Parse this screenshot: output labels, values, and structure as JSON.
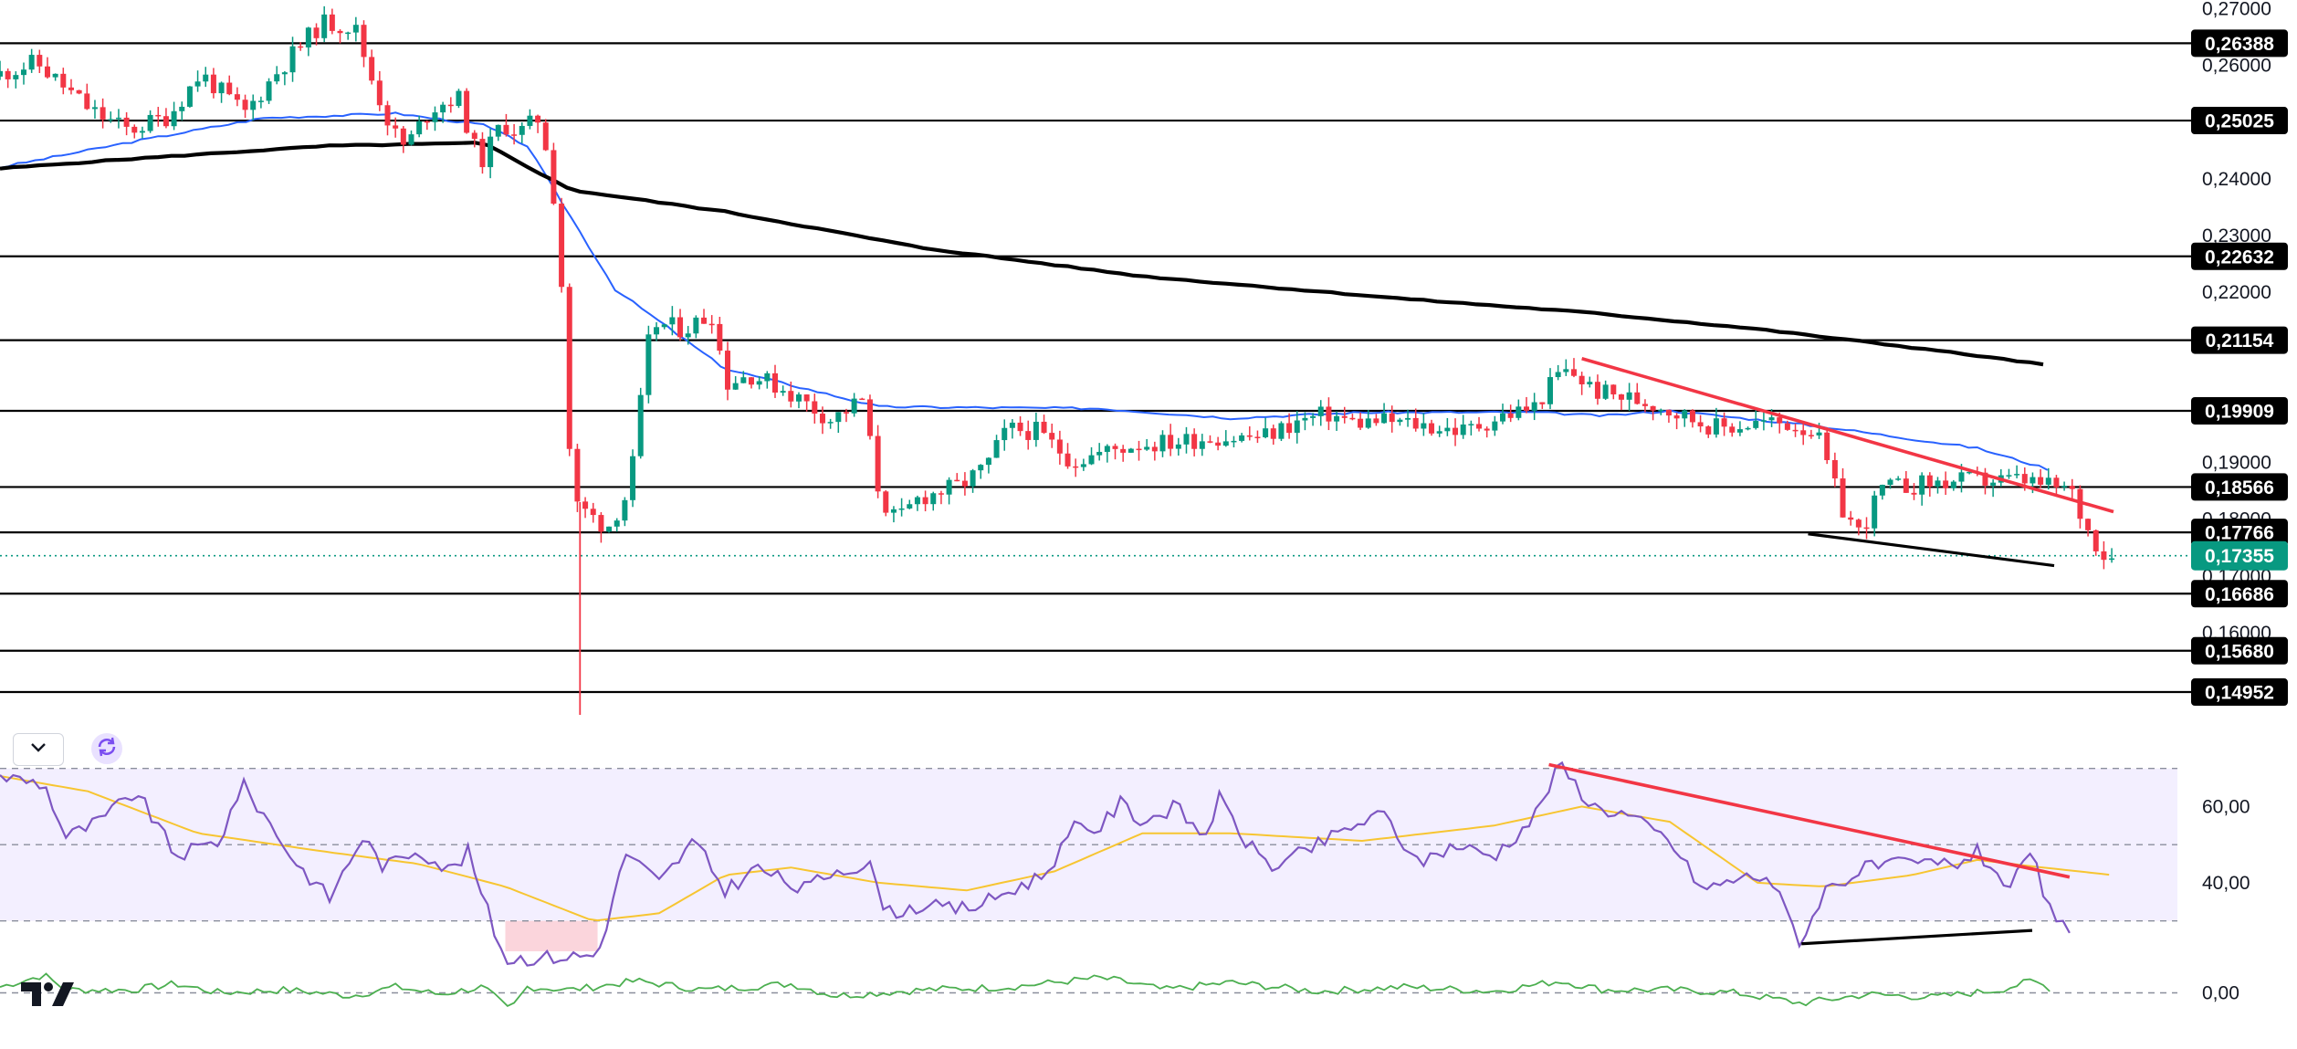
{
  "chart_data": [
    {
      "type": "candlestick",
      "pane": "price",
      "price_axis_ticks": [
        "0,27000",
        "0,26000",
        "0,24000",
        "0,23000",
        "0,22000",
        "0,19000",
        "0,18000",
        "0,17000",
        "0,16000"
      ],
      "ylim": [
        0.1455,
        0.2715
      ],
      "horizontal_levels": [
        {
          "value": 0.26388,
          "label": "0,26388"
        },
        {
          "value": 0.25025,
          "label": "0,25025"
        },
        {
          "value": 0.22632,
          "label": "0,22632"
        },
        {
          "value": 0.21154,
          "label": "0,21154"
        },
        {
          "value": 0.19909,
          "label": "0,19909"
        },
        {
          "value": 0.18566,
          "label": "0,18566"
        },
        {
          "value": 0.17766,
          "label": "0,17766"
        },
        {
          "value": 0.16686,
          "label": "0,16686"
        },
        {
          "value": 0.1568,
          "label": "0,15680"
        },
        {
          "value": 0.14952,
          "label": "0,14952"
        }
      ],
      "current_price": {
        "value": 0.17355,
        "label": "0,17355"
      },
      "series": [
        {
          "kind": "candles",
          "anchors": [
            [
              0,
              0.258
            ],
            [
              20,
              0.2605
            ],
            [
              45,
              0.252
            ],
            [
              62,
              0.2485
            ],
            [
              80,
              0.251
            ],
            [
              95,
              0.2585
            ],
            [
              115,
              0.2515
            ],
            [
              130,
              0.259
            ],
            [
              150,
              0.2675
            ],
            [
              165,
              0.2668
            ],
            [
              172,
              0.2585
            ],
            [
              182,
              0.2485
            ],
            [
              188,
              0.2455
            ],
            [
              200,
              0.2525
            ],
            [
              212,
              0.2545
            ],
            [
              222,
              0.2425
            ],
            [
              232,
              0.2498
            ],
            [
              240,
              0.2481
            ],
            [
              250,
              0.251
            ],
            [
              258,
              0.231
            ],
            [
              264,
              0.183
            ],
            [
              280,
              0.1785
            ],
            [
              290,
              0.185
            ],
            [
              300,
              0.2145
            ],
            [
              315,
              0.2135
            ],
            [
              328,
              0.2162
            ],
            [
              334,
              0.204
            ],
            [
              345,
              0.2055
            ],
            [
              360,
              0.203
            ],
            [
              382,
              0.1975
            ],
            [
              396,
              0.201
            ],
            [
              404,
              0.184
            ],
            [
              412,
              0.1795
            ],
            [
              422,
              0.1838
            ],
            [
              440,
              0.1858
            ],
            [
              452,
              0.189
            ],
            [
              462,
              0.1958
            ],
            [
              475,
              0.1955
            ],
            [
              492,
              0.1902
            ],
            [
              506,
              0.1918
            ],
            [
              520,
              0.1932
            ],
            [
              537,
              0.1935
            ],
            [
              555,
              0.1945
            ],
            [
              566,
              0.1943
            ],
            [
              580,
              0.1947
            ],
            [
              593,
              0.197
            ],
            [
              608,
              0.1985
            ],
            [
              620,
              0.197
            ],
            [
              634,
              0.1973
            ],
            [
              652,
              0.1965
            ],
            [
              670,
              0.1955
            ],
            [
              686,
              0.198
            ],
            [
              702,
              0.1998
            ],
            [
              714,
              0.206
            ],
            [
              720,
              0.2055
            ],
            [
              730,
              0.2025
            ],
            [
              746,
              0.2012
            ],
            [
              758,
              0.2002
            ],
            [
              770,
              0.1982
            ],
            [
              786,
              0.196
            ],
            [
              804,
              0.197
            ],
            [
              818,
              0.1968
            ],
            [
              830,
              0.1955
            ],
            [
              842,
              0.1818
            ],
            [
              850,
              0.1775
            ],
            [
              860,
              0.1853
            ],
            [
              880,
              0.1862
            ],
            [
              900,
              0.1868
            ],
            [
              925,
              0.1868
            ],
            [
              935,
              0.1858
            ],
            [
              946,
              0.1852
            ],
            [
              953,
              0.1785
            ],
            [
              962,
              0.1735
            ]
          ]
        },
        {
          "kind": "ma_blue",
          "anchors": [
            [
              0,
              0.242
            ],
            [
              60,
              0.2465
            ],
            [
              120,
              0.2507
            ],
            [
              180,
              0.2515
            ],
            [
              220,
              0.2495
            ],
            [
              240,
              0.2458
            ],
            [
              280,
              0.2205
            ],
            [
              330,
              0.2065
            ],
            [
              400,
              0.1998
            ],
            [
              500,
              0.1995
            ],
            [
              560,
              0.1978
            ],
            [
              620,
              0.1988
            ],
            [
              700,
              0.1988
            ],
            [
              730,
              0.1982
            ],
            [
              760,
              0.1991
            ],
            [
              830,
              0.1963
            ],
            [
              900,
              0.1925
            ],
            [
              935,
              0.1885
            ]
          ]
        },
        {
          "kind": "ma_black",
          "anchors": [
            [
              0,
              0.2418
            ],
            [
              60,
              0.2435
            ],
            [
              150,
              0.2458
            ],
            [
              220,
              0.2463
            ],
            [
              260,
              0.238
            ],
            [
              330,
              0.2342
            ],
            [
              420,
              0.2278
            ],
            [
              520,
              0.2228
            ],
            [
              640,
              0.2188
            ],
            [
              720,
              0.2165
            ],
            [
              800,
              0.2135
            ],
            [
              880,
              0.2098
            ],
            [
              935,
              0.207
            ]
          ]
        },
        {
          "kind": "trendline_resistance",
          "color": "#f23645",
          "points": [
            [
              720,
              0.2083
            ],
            [
              962,
              0.1813
            ]
          ]
        },
        {
          "kind": "trendline_support",
          "color": "#000000",
          "points": [
            [
              823,
              0.1774
            ],
            [
              935,
              0.1718
            ]
          ]
        }
      ]
    },
    {
      "type": "line",
      "pane": "rsi",
      "axis_ticks": [
        "60,00",
        "40,00"
      ],
      "ylim": [
        22.5,
        74
      ],
      "reference_lines": [
        70,
        50,
        30
      ],
      "oversold_highlight": [
        [
          230,
          272
        ]
      ],
      "series": [
        {
          "kind": "rsi",
          "color": "#7e57c2",
          "anchors": [
            [
              0,
              68
            ],
            [
              20,
              66
            ],
            [
              30,
              52
            ],
            [
              45,
              56
            ],
            [
              62,
              64
            ],
            [
              80,
              47
            ],
            [
              100,
              51
            ],
            [
              110,
              66
            ],
            [
              120,
              58
            ],
            [
              135,
              45
            ],
            [
              150,
              36
            ],
            [
              165,
              52
            ],
            [
              175,
              44
            ],
            [
              190,
              49
            ],
            [
              205,
              43
            ],
            [
              213,
              48
            ],
            [
              224,
              29
            ],
            [
              230,
              20
            ],
            [
              272,
              21
            ],
            [
              285,
              48
            ],
            [
              300,
              40
            ],
            [
              316,
              51
            ],
            [
              330,
              38
            ],
            [
              345,
              44
            ],
            [
              365,
              38
            ],
            [
              382,
              44
            ],
            [
              396,
              44
            ],
            [
              404,
              32
            ],
            [
              420,
              34
            ],
            [
              434,
              33
            ],
            [
              445,
              34
            ],
            [
              460,
              38
            ],
            [
              475,
              42
            ],
            [
              490,
              55
            ],
            [
              500,
              54
            ],
            [
              510,
              61
            ],
            [
              520,
              56
            ],
            [
              535,
              60
            ],
            [
              548,
              52
            ],
            [
              555,
              62
            ],
            [
              568,
              50
            ],
            [
              580,
              44
            ],
            [
              600,
              50
            ],
            [
              616,
              55
            ],
            [
              630,
              58
            ],
            [
              645,
              45
            ],
            [
              662,
              50
            ],
            [
              680,
              47
            ],
            [
              698,
              57
            ],
            [
              710,
              71
            ],
            [
              725,
              60
            ],
            [
              740,
              58
            ],
            [
              760,
              51
            ],
            [
              775,
              38
            ],
            [
              790,
              41
            ],
            [
              805,
              42
            ],
            [
              820,
              24
            ],
            [
              830,
              38
            ],
            [
              850,
              44
            ],
            [
              870,
              45
            ],
            [
              890,
              45
            ],
            [
              900,
              48
            ],
            [
              915,
              39
            ],
            [
              925,
              47
            ],
            [
              935,
              29
            ],
            [
              942,
              28
            ]
          ]
        },
        {
          "kind": "rsi_ma",
          "color": "#f7c531",
          "anchors": [
            [
              0,
              68
            ],
            [
              40,
              64
            ],
            [
              90,
              53
            ],
            [
              150,
              48
            ],
            [
              190,
              45
            ],
            [
              230,
              39
            ],
            [
              270,
              30
            ],
            [
              300,
              32
            ],
            [
              330,
              42
            ],
            [
              360,
              44
            ],
            [
              400,
              40
            ],
            [
              440,
              38
            ],
            [
              480,
              43
            ],
            [
              520,
              53
            ],
            [
              560,
              53
            ],
            [
              620,
              51
            ],
            [
              680,
              55
            ],
            [
              720,
              60
            ],
            [
              760,
              56
            ],
            [
              800,
              40
            ],
            [
              830,
              39
            ],
            [
              870,
              42
            ],
            [
              900,
              46
            ],
            [
              930,
              44
            ],
            [
              962,
              42
            ]
          ]
        },
        {
          "kind": "trendline_resistance",
          "color": "#f23645",
          "points": [
            [
              705,
              71
            ],
            [
              942,
              41.5
            ]
          ]
        },
        {
          "kind": "trendline_support",
          "color": "#000000",
          "points": [
            [
              820,
              24
            ],
            [
              925,
              27.5
            ]
          ]
        }
      ]
    },
    {
      "type": "line",
      "pane": "oscillator",
      "axis_ticks": [
        "0,00"
      ],
      "ylim": [
        -1,
        1
      ],
      "series": [
        {
          "kind": "osc",
          "color": "#4caf50",
          "anchors": [
            [
              0,
              0.2
            ],
            [
              20,
              0.6
            ],
            [
              30,
              0.1
            ],
            [
              60,
              0.1
            ],
            [
              80,
              0.3
            ],
            [
              100,
              0
            ],
            [
              130,
              0.1
            ],
            [
              160,
              -0.1
            ],
            [
              180,
              0.2
            ],
            [
              200,
              -0.05
            ],
            [
              220,
              0.2
            ],
            [
              232,
              -0.6
            ],
            [
              240,
              0.2
            ],
            [
              260,
              0.1
            ],
            [
              290,
              0.4
            ],
            [
              320,
              0.1
            ],
            [
              360,
              0.3
            ],
            [
              380,
              -0.1
            ],
            [
              420,
              0.1
            ],
            [
              460,
              0.2
            ],
            [
              500,
              0.5
            ],
            [
              510,
              0.4
            ],
            [
              530,
              0.1
            ],
            [
              560,
              0.35
            ],
            [
              600,
              0.05
            ],
            [
              640,
              0.2
            ],
            [
              680,
              0.05
            ],
            [
              710,
              0.4
            ],
            [
              730,
              0.1
            ],
            [
              760,
              0.1
            ],
            [
              790,
              0
            ],
            [
              820,
              -0.35
            ],
            [
              850,
              -0.05
            ],
            [
              880,
              -0.15
            ],
            [
              910,
              0.1
            ],
            [
              925,
              0.4
            ],
            [
              935,
              0.1
            ]
          ]
        }
      ]
    }
  ]
}
